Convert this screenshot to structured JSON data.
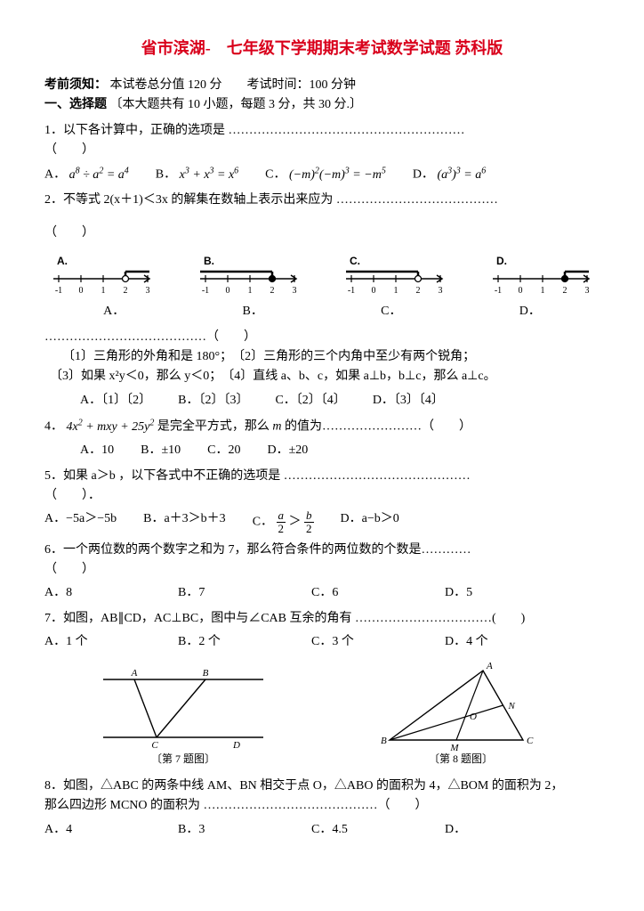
{
  "title": "省市滨湖-　七年级下学期期末考试数学试题 苏科版",
  "preface": {
    "label": "考前须知：",
    "text": "本试卷总分值 120 分　　考试时间：100 分钟"
  },
  "section1": {
    "head": "一、选择题",
    "tail": "〔本大题共有 10 小题，每题 3 分，共 30 分.〕"
  },
  "q1": {
    "stem_a": "1．以下各计算中，正确的选项是 ",
    "paren": "（　　）",
    "A": "A．",
    "A_math": "a⁸ ÷ a² = a⁴",
    "B": "B．",
    "B_math": "x³ + x³ = x⁶",
    "C": "C．",
    "C_math": "(−m)²(−m)³ = −m⁵",
    "D": "D．",
    "D_math": "(a³)³ = a⁶"
  },
  "q2": {
    "stem": "2．不等式 2(x＋1)＜3x 的解集在数轴上表示出来应为 ",
    "paren": "（　　）",
    "nl": {
      "ticks": [
        "-1",
        "0",
        "1",
        "2",
        "3"
      ],
      "labels": [
        "A.",
        "B.",
        "C.",
        "D."
      ],
      "row2": [
        "A．",
        "B．",
        "C．",
        "D．"
      ]
    }
  },
  "q3": {
    "lead": "…………………………………（　　）",
    "l1": "〔1〕三角形的外角和是 180°；　〔2〕三角形的三个内角中至少有两个锐角；",
    "l2": "〔3〕如果 x²y＜0，那么 y＜0；　〔4〕直线 a、b、c，如果 a⊥b，b⊥c，那么 a⊥c。",
    "A": "A．〔1〕〔2〕",
    "B": "B．〔2〕〔3〕",
    "C": "C．〔2〕〔4〕",
    "D": "D．〔3〕〔4〕"
  },
  "q4": {
    "stem": "4．4x² + mxy + 25y² 是完全平方式，那么 m 的值为……………………（　　）",
    "A": "A．10",
    "B": "B．±10",
    "C": "C．20",
    "D": "D．±20"
  },
  "q5": {
    "stem": "5．如果 a＞b ，以下各式中不正确的选项是 ………………………………………",
    "paren": "（　　）．",
    "A": "A．−5a＞−5b",
    "B": "B．a＋3＞b＋3",
    "C_pre": "C．",
    "C_gt": "＞",
    "D": "D．a−b＞0",
    "frac_a_num": "a",
    "frac_a_den": "2",
    "frac_b_num": "b",
    "frac_b_den": "2"
  },
  "q6": {
    "stem": "6．一个两位数的两个数字之和为 7，那么符合条件的两位数的个数是…………",
    "paren": "（　　）",
    "A": "A．8",
    "B": "B．7",
    "C": "C．6",
    "D": "D．5"
  },
  "q7": {
    "stem": "7．如图，AB∥CD，AC⊥BC，图中与∠CAB 互余的角有 ……………………………(　　)",
    "A": "A．1 个",
    "B": "B．2 个",
    "C": "C．3 个",
    "D": "D．4 个"
  },
  "figlabels": {
    "left": "〔第 7 题图〕",
    "right": "〔第 8 题图〕"
  },
  "q8": {
    "stem_a": "8．如图，△ABC 的两条中线 AM、BN 相交于点 O，△ABO 的面积为 4，△BOM 的面积为 2，",
    "stem_b": "那么四边形 MCNO 的面积为 ……………………………………（　　）",
    "A": "A．4",
    "B": "B．3",
    "C": "C．4.5",
    "D": "D．"
  },
  "fig7": {
    "A": "A",
    "B": "B",
    "C": "C",
    "D": "D"
  },
  "fig8": {
    "A": "A",
    "B": "B",
    "C": "C",
    "M": "M",
    "N": "N",
    "O": "O"
  },
  "nl_style": {
    "stroke": "#000000",
    "fill_open": "#ffffff",
    "fill_solid": "#000000",
    "tick_h": 6,
    "arrow": 5,
    "w": 130,
    "h": 44
  }
}
